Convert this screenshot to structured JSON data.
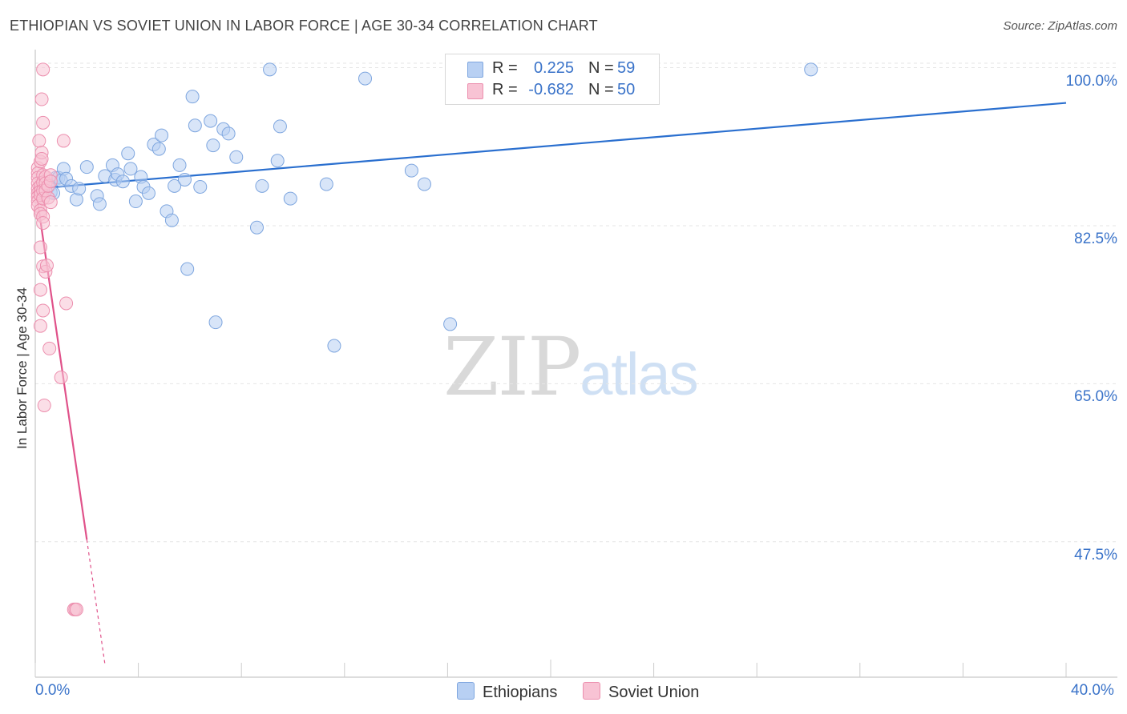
{
  "title": "ETHIOPIAN VS SOVIET UNION IN LABOR FORCE | AGE 30-34 CORRELATION CHART",
  "source": "Source: ZipAtlas.com",
  "colors": {
    "blue_fill": "#b8d0f3",
    "blue_stroke": "#7ea6df",
    "blue_line": "#2a6fcf",
    "pink_fill": "#f8c3d4",
    "pink_stroke": "#ec8fae",
    "pink_line": "#e0528a",
    "accent_text": "#3a73c9"
  },
  "stats": [
    {
      "label": "R =",
      "r": "0.225",
      "n_label": "N =",
      "n": "59",
      "color": "#b8d0f3"
    },
    {
      "label": "R =",
      "r": "-0.682",
      "n_label": "N =",
      "n": "50",
      "color": "#f8c3d4"
    }
  ],
  "legend": [
    {
      "name": "Ethiopians",
      "color": "#b8d0f3"
    },
    {
      "name": "Soviet Union",
      "color": "#f8c3d4"
    }
  ],
  "watermark": {
    "zip": "ZIP",
    "atlas": "atlas"
  },
  "chart_data": {
    "type": "scatter",
    "title": "ETHIOPIAN VS SOVIET UNION IN LABOR FORCE | AGE 30-34 CORRELATION CHART",
    "xlabel": "",
    "ylabel": "In Labor Force | Age 30-34",
    "xlim": [
      0,
      40
    ],
    "ylim": [
      32.5,
      102
    ],
    "x_tick_labels": [
      "0.0%",
      "40.0%"
    ],
    "y_ticks": [
      47.5,
      65.0,
      82.5,
      100.0
    ],
    "y_tick_labels": [
      "47.5%",
      "65.0%",
      "82.5%",
      "100.0%"
    ],
    "grid": true,
    "legend_position": "bottom-center",
    "series": [
      {
        "name": "Ethiopians",
        "color": "#b8d0f3",
        "trend": {
          "x": [
            0.0,
            40.0
          ],
          "y": [
            86.6,
            96.1
          ],
          "dashed_from": null
        },
        "points": [
          [
            0.4,
            86.4
          ],
          [
            0.5,
            86.9
          ],
          [
            0.5,
            86.8
          ],
          [
            0.6,
            86.2
          ],
          [
            0.7,
            86.1
          ],
          [
            0.8,
            87.8
          ],
          [
            0.9,
            87.8
          ],
          [
            1.0,
            87.5
          ],
          [
            1.1,
            88.8
          ],
          [
            1.2,
            87.7
          ],
          [
            1.4,
            86.9
          ],
          [
            1.6,
            85.4
          ],
          [
            1.7,
            86.6
          ],
          [
            2.0,
            89.0
          ],
          [
            2.4,
            85.8
          ],
          [
            2.5,
            84.9
          ],
          [
            2.7,
            88.0
          ],
          [
            3.0,
            89.2
          ],
          [
            3.1,
            87.6
          ],
          [
            3.2,
            88.2
          ],
          [
            3.4,
            87.4
          ],
          [
            3.6,
            90.5
          ],
          [
            3.7,
            88.8
          ],
          [
            3.9,
            85.2
          ],
          [
            4.1,
            87.9
          ],
          [
            4.2,
            86.8
          ],
          [
            4.4,
            86.1
          ],
          [
            4.6,
            91.5
          ],
          [
            4.8,
            91.0
          ],
          [
            4.9,
            92.5
          ],
          [
            5.1,
            84.1
          ],
          [
            5.3,
            83.1
          ],
          [
            5.4,
            86.9
          ],
          [
            5.6,
            89.2
          ],
          [
            5.8,
            87.6
          ],
          [
            5.9,
            77.7
          ],
          [
            6.1,
            96.8
          ],
          [
            6.2,
            93.6
          ],
          [
            6.4,
            86.8
          ],
          [
            6.8,
            94.1
          ],
          [
            6.9,
            91.4
          ],
          [
            7.0,
            71.8
          ],
          [
            7.3,
            93.2
          ],
          [
            7.5,
            92.7
          ],
          [
            7.8,
            90.1
          ],
          [
            8.6,
            82.3
          ],
          [
            8.8,
            86.9
          ],
          [
            9.1,
            99.8
          ],
          [
            9.4,
            89.7
          ],
          [
            9.5,
            93.5
          ],
          [
            9.9,
            85.5
          ],
          [
            11.3,
            87.1
          ],
          [
            11.6,
            69.2
          ],
          [
            12.8,
            98.8
          ],
          [
            14.6,
            88.6
          ],
          [
            15.1,
            87.1
          ],
          [
            16.1,
            71.6
          ],
          [
            20.7,
            99.8
          ],
          [
            30.1,
            99.8
          ]
        ]
      },
      {
        "name": "Soviet Union",
        "color": "#f8c3d4",
        "trend": {
          "x": [
            0.0,
            2.7
          ],
          "y": [
            87.0,
            34.0
          ],
          "dashed_from": 2.0
        },
        "points": [
          [
            0.1,
            88.9
          ],
          [
            0.1,
            88.3
          ],
          [
            0.1,
            87.8
          ],
          [
            0.1,
            87.2
          ],
          [
            0.1,
            86.6
          ],
          [
            0.1,
            86.1
          ],
          [
            0.1,
            85.7
          ],
          [
            0.1,
            85.2
          ],
          [
            0.1,
            84.7
          ],
          [
            0.15,
            91.9
          ],
          [
            0.2,
            89.6
          ],
          [
            0.2,
            86.9
          ],
          [
            0.2,
            86.3
          ],
          [
            0.2,
            85.9
          ],
          [
            0.2,
            84.2
          ],
          [
            0.2,
            83.8
          ],
          [
            0.2,
            80.1
          ],
          [
            0.2,
            75.4
          ],
          [
            0.2,
            71.4
          ],
          [
            0.25,
            96.5
          ],
          [
            0.25,
            90.6
          ],
          [
            0.25,
            89.9
          ],
          [
            0.3,
            99.8
          ],
          [
            0.3,
            93.9
          ],
          [
            0.3,
            88.1
          ],
          [
            0.3,
            87.3
          ],
          [
            0.3,
            86.4
          ],
          [
            0.3,
            85.5
          ],
          [
            0.3,
            83.5
          ],
          [
            0.3,
            82.8
          ],
          [
            0.3,
            78.0
          ],
          [
            0.3,
            73.1
          ],
          [
            0.35,
            62.6
          ],
          [
            0.4,
            87.9
          ],
          [
            0.4,
            87.2
          ],
          [
            0.4,
            86.4
          ],
          [
            0.4,
            77.4
          ],
          [
            0.45,
            78.1
          ],
          [
            0.5,
            85.6
          ],
          [
            0.5,
            86.9
          ],
          [
            0.55,
            68.9
          ],
          [
            0.6,
            88.1
          ],
          [
            0.6,
            85.1
          ],
          [
            0.6,
            87.4
          ],
          [
            1.0,
            65.7
          ],
          [
            1.1,
            91.9
          ],
          [
            1.2,
            73.9
          ],
          [
            1.5,
            40.0
          ],
          [
            1.55,
            40.0
          ],
          [
            1.6,
            40.0
          ]
        ]
      }
    ]
  }
}
